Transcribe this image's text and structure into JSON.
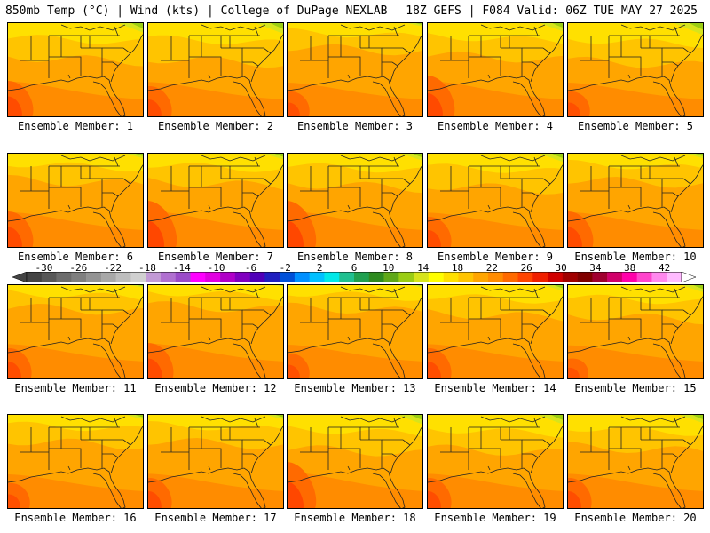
{
  "header": {
    "left": "850mb Temp (°C) | Wind (kts) | College of DuPage NEXLAB",
    "right": "18Z GEFS | F084 Valid: 06Z TUE MAY 27 2025"
  },
  "panels": [
    {
      "label": "Ensemble Member: 1",
      "cool_north": 0.8,
      "hot_west": 0.7
    },
    {
      "label": "Ensemble Member: 2",
      "cool_north": 0.9,
      "hot_west": 0.6
    },
    {
      "label": "Ensemble Member: 3",
      "cool_north": 0.3,
      "hot_west": 0.5
    },
    {
      "label": "Ensemble Member: 4",
      "cool_north": 0.7,
      "hot_west": 0.8
    },
    {
      "label": "Ensemble Member: 5",
      "cool_north": 1.0,
      "hot_west": 0.5
    },
    {
      "label": "Ensemble Member: 6",
      "cool_north": 0.4,
      "hot_west": 0.7
    },
    {
      "label": "Ensemble Member: 7",
      "cool_north": 0.5,
      "hot_west": 0.9
    },
    {
      "label": "Ensemble Member: 8",
      "cool_north": 0.6,
      "hot_west": 0.9
    },
    {
      "label": "Ensemble Member: 9",
      "cool_north": 0.7,
      "hot_west": 0.6
    },
    {
      "label": "Ensemble Member: 10",
      "cool_north": 0.4,
      "hot_west": 0.7
    },
    {
      "label": "Ensemble Member: 11",
      "cool_north": 0.2,
      "hot_west": 0.6
    },
    {
      "label": "Ensemble Member: 12",
      "cool_north": 0.1,
      "hot_west": 0.7
    },
    {
      "label": "Ensemble Member: 13",
      "cool_north": 0.2,
      "hot_west": 0.5
    },
    {
      "label": "Ensemble Member: 14",
      "cool_north": 0.5,
      "hot_west": 0.6
    },
    {
      "label": "Ensemble Member: 15",
      "cool_north": 0.6,
      "hot_west": 0.4
    },
    {
      "label": "Ensemble Member: 16",
      "cool_north": 0.4,
      "hot_west": 0.5
    },
    {
      "label": "Ensemble Member: 17",
      "cool_north": 0.4,
      "hot_west": 0.6
    },
    {
      "label": "Ensemble Member: 18",
      "cool_north": 0.8,
      "hot_west": 0.9
    },
    {
      "label": "Ensemble Member: 19",
      "cool_north": 0.8,
      "hot_west": 0.6
    },
    {
      "label": "Ensemble Member: 20",
      "cool_north": 0.7,
      "hot_west": 0.6
    }
  ],
  "colorbar": {
    "tick_labels": [
      "-30",
      "-26",
      "-22",
      "-18",
      "-14",
      "-10",
      "-6",
      "-2",
      "2",
      "6",
      "10",
      "14",
      "18",
      "22",
      "26",
      "30",
      "34",
      "38",
      "42"
    ],
    "colors": [
      "#444444",
      "#585858",
      "#6c6c6c",
      "#7f7f7f",
      "#939393",
      "#a8a8a8",
      "#bdbdbd",
      "#d0d0d0",
      "#c29ad6",
      "#b070d0",
      "#9a4bc8",
      "#ff00ff",
      "#e000e0",
      "#b000c8",
      "#8000c0",
      "#5000b8",
      "#2020c0",
      "#0050d8",
      "#0090ff",
      "#00c0ff",
      "#00e8e8",
      "#20c090",
      "#20a050",
      "#2e8b20",
      "#60a818",
      "#9acd14",
      "#d6e41c",
      "#ffff00",
      "#ffe000",
      "#ffc400",
      "#ffa500",
      "#ff8c00",
      "#ff6a00",
      "#ff4500",
      "#f02000",
      "#d00000",
      "#a00000",
      "#800000",
      "#a00030",
      "#d0006a",
      "#ff00aa",
      "#ff44cc",
      "#ff88ee",
      "#ffbbff"
    ],
    "range": [
      -32,
      44
    ]
  }
}
